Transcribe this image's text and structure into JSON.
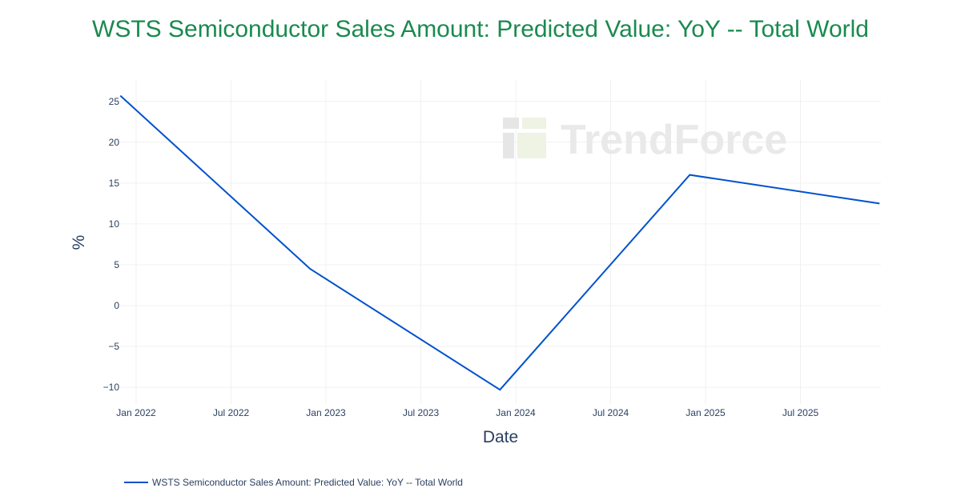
{
  "title": "WSTS Semiconductor Sales Amount: Predicted Value: YoY -- Total World",
  "watermark": "TrendForce",
  "colors": {
    "title": "#1a8a4f",
    "line": "#0052cc",
    "grid": "#f0f0f0",
    "text": "#2a3f5f"
  },
  "legend": {
    "label": "WSTS Semiconductor Sales Amount: Predicted Value: YoY -- Total World"
  },
  "chart_data": {
    "type": "line",
    "title": "WSTS Semiconductor Sales Amount: Predicted Value: YoY -- Total World",
    "xlabel": "Date",
    "ylabel": "%",
    "x": [
      "2021-12",
      "2022-12",
      "2023-12",
      "2024-12",
      "2025-12"
    ],
    "series": [
      {
        "name": "WSTS Semiconductor Sales Amount: Predicted Value: YoY -- Total World",
        "values": [
          25.7,
          4.5,
          -10.3,
          16.0,
          12.5
        ]
      }
    ],
    "x_ticks": [
      "Jan 2022",
      "Jul 2022",
      "Jan 2023",
      "Jul 2023",
      "Jan 2024",
      "Jul 2024",
      "Jan 2025",
      "Jul 2025"
    ],
    "y_ticks": [
      25,
      20,
      15,
      10,
      5,
      0,
      -5,
      -10
    ],
    "ylim": [
      -12,
      27.5
    ],
    "grid": true,
    "legend_position": "bottom-left"
  }
}
